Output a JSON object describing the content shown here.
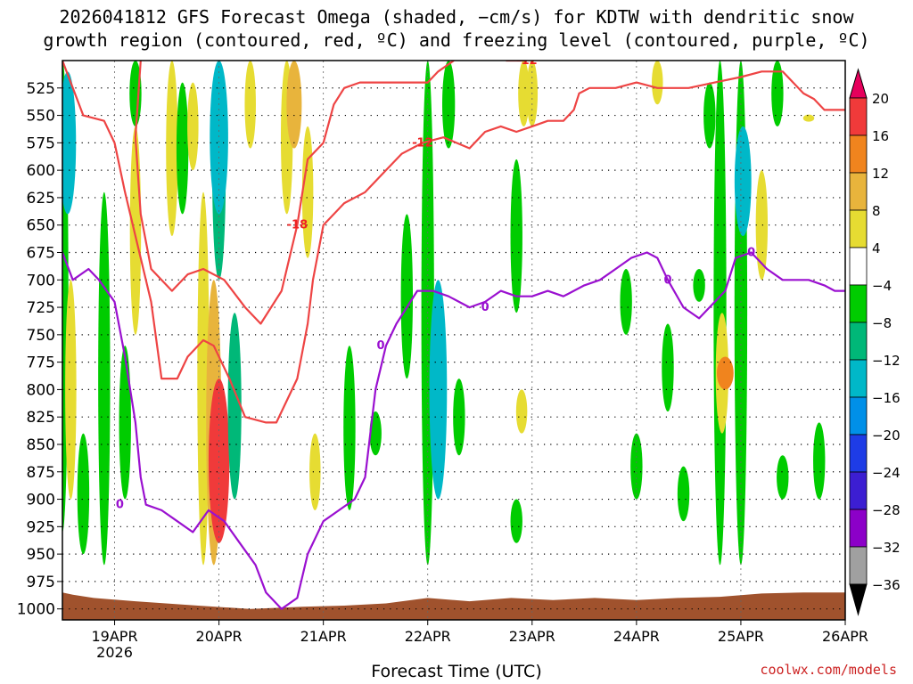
{
  "title_line1": "2026041812 GFS Forecast Omega (shaded, −cm/s) for KDTW with dendritic snow",
  "title_line2": "growth region (contoured, red, ºC) and freezing level (contoured, purple, ºC)",
  "credit": "coolwx.com/models",
  "chart_data": {
    "type": "heatmap",
    "xlabel": "Forecast Time (UTC)",
    "ylabel": "",
    "x_ticks": [
      {
        "day": 19,
        "label": "19APR",
        "sub": "2026"
      },
      {
        "day": 20,
        "label": "20APR",
        "sub": ""
      },
      {
        "day": 21,
        "label": "21APR",
        "sub": ""
      },
      {
        "day": 22,
        "label": "22APR",
        "sub": ""
      },
      {
        "day": 23,
        "label": "23APR",
        "sub": ""
      },
      {
        "day": 24,
        "label": "24APR",
        "sub": ""
      },
      {
        "day": 25,
        "label": "25APR",
        "sub": ""
      },
      {
        "day": 26,
        "label": "26APR",
        "sub": ""
      }
    ],
    "xlim": [
      18.5,
      26.0
    ],
    "y_ticks": [
      525,
      550,
      575,
      600,
      625,
      650,
      675,
      700,
      725,
      750,
      775,
      800,
      825,
      850,
      875,
      900,
      925,
      950,
      975,
      1000
    ],
    "ylim": [
      500,
      1010
    ],
    "colorbar": {
      "levels": [
        "20",
        "16",
        "12",
        "8",
        "4",
        "−4",
        "−8",
        "−12",
        "−16",
        "−20",
        "−24",
        "−28",
        "−32",
        "−36"
      ],
      "colors": [
        "#e6005c",
        "#f03a3a",
        "#f0841e",
        "#e8b43c",
        "#e6dc32",
        "#ffffff",
        "#00cc00",
        "#00b878",
        "#00b8c8",
        "#0090e8",
        "#1e3ce6",
        "#3c1ed2",
        "#8c00c8",
        "#a0a0a0",
        "#000000"
      ]
    },
    "omega_patches": [
      {
        "x": 18.5,
        "p0": 500,
        "p1": 930,
        "v": -6
      },
      {
        "x": 18.55,
        "p0": 510,
        "p1": 640,
        "v": -12
      },
      {
        "x": 18.58,
        "p0": 700,
        "p1": 900,
        "v": 5
      },
      {
        "x": 18.7,
        "p0": 840,
        "p1": 950,
        "v": -6
      },
      {
        "x": 18.9,
        "p0": 620,
        "p1": 960,
        "v": -6
      },
      {
        "x": 19.1,
        "p0": 760,
        "p1": 900,
        "v": -6
      },
      {
        "x": 19.2,
        "p0": 500,
        "p1": 560,
        "v": -6
      },
      {
        "x": 19.2,
        "p0": 560,
        "p1": 750,
        "v": 5
      },
      {
        "x": 19.55,
        "p0": 500,
        "p1": 660,
        "v": 6
      },
      {
        "x": 19.65,
        "p0": 520,
        "p1": 640,
        "v": -6
      },
      {
        "x": 19.75,
        "p0": 520,
        "p1": 600,
        "v": 5
      },
      {
        "x": 19.85,
        "p0": 620,
        "p1": 960,
        "v": 6
      },
      {
        "x": 19.95,
        "p0": 700,
        "p1": 960,
        "v": 10
      },
      {
        "x": 20.0,
        "p0": 790,
        "p1": 940,
        "v": 17
      },
      {
        "x": 20.0,
        "p0": 500,
        "p1": 700,
        "v": -8
      },
      {
        "x": 20.0,
        "p0": 500,
        "p1": 640,
        "v": -14
      },
      {
        "x": 20.15,
        "p0": 730,
        "p1": 900,
        "v": -8
      },
      {
        "x": 20.3,
        "p0": 500,
        "p1": 580,
        "v": 5
      },
      {
        "x": 20.65,
        "p0": 500,
        "p1": 640,
        "v": 6
      },
      {
        "x": 20.72,
        "p0": 500,
        "p1": 580,
        "v": 10
      },
      {
        "x": 20.85,
        "p0": 560,
        "p1": 680,
        "v": 5
      },
      {
        "x": 20.92,
        "p0": 840,
        "p1": 910,
        "v": 5
      },
      {
        "x": 21.25,
        "p0": 760,
        "p1": 910,
        "v": -6
      },
      {
        "x": 21.5,
        "p0": 820,
        "p1": 860,
        "v": -6
      },
      {
        "x": 21.8,
        "p0": 640,
        "p1": 790,
        "v": -6
      },
      {
        "x": 22.0,
        "p0": 500,
        "p1": 960,
        "v": -7
      },
      {
        "x": 22.1,
        "p0": 700,
        "p1": 900,
        "v": -13
      },
      {
        "x": 22.2,
        "p0": 500,
        "p1": 580,
        "v": -7
      },
      {
        "x": 22.3,
        "p0": 790,
        "p1": 860,
        "v": -6
      },
      {
        "x": 22.85,
        "p0": 590,
        "p1": 730,
        "v": -6
      },
      {
        "x": 22.92,
        "p0": 500,
        "p1": 560,
        "v": 5
      },
      {
        "x": 23.0,
        "p0": 500,
        "p1": 560,
        "v": 5
      },
      {
        "x": 22.85,
        "p0": 900,
        "p1": 940,
        "v": -6
      },
      {
        "x": 22.9,
        "p0": 800,
        "p1": 840,
        "v": 5
      },
      {
        "x": 23.9,
        "p0": 690,
        "p1": 750,
        "v": -6
      },
      {
        "x": 24.0,
        "p0": 840,
        "p1": 900,
        "v": -6
      },
      {
        "x": 24.2,
        "p0": 500,
        "p1": 540,
        "v": 5
      },
      {
        "x": 24.3,
        "p0": 740,
        "p1": 820,
        "v": -6
      },
      {
        "x": 24.45,
        "p0": 870,
        "p1": 920,
        "v": -6
      },
      {
        "x": 24.6,
        "p0": 690,
        "p1": 720,
        "v": -6
      },
      {
        "x": 24.7,
        "p0": 520,
        "p1": 580,
        "v": -6
      },
      {
        "x": 24.8,
        "p0": 500,
        "p1": 960,
        "v": -7
      },
      {
        "x": 24.82,
        "p0": 730,
        "p1": 840,
        "v": 7
      },
      {
        "x": 24.85,
        "p0": 770,
        "p1": 800,
        "v": 12
      },
      {
        "x": 25.0,
        "p0": 500,
        "p1": 960,
        "v": -7
      },
      {
        "x": 25.02,
        "p0": 560,
        "p1": 660,
        "v": -12
      },
      {
        "x": 25.2,
        "p0": 600,
        "p1": 700,
        "v": 6
      },
      {
        "x": 25.35,
        "p0": 500,
        "p1": 560,
        "v": -6
      },
      {
        "x": 25.4,
        "p0": 860,
        "p1": 900,
        "v": -6
      },
      {
        "x": 25.75,
        "p0": 830,
        "p1": 900,
        "v": -6
      },
      {
        "x": 25.65,
        "p0": 550,
        "p1": 555,
        "v": 5
      }
    ],
    "dgz_contours": [
      {
        "label": "-12",
        "points": [
          [
            18.5,
            500
          ],
          [
            18.6,
            525
          ],
          [
            18.7,
            550
          ],
          [
            18.9,
            555
          ],
          [
            19.0,
            575
          ],
          [
            19.1,
            620
          ],
          [
            19.2,
            660
          ],
          [
            19.35,
            720
          ],
          [
            19.45,
            790
          ],
          [
            19.6,
            790
          ],
          [
            19.7,
            770
          ],
          [
            19.85,
            755
          ],
          [
            19.95,
            760
          ],
          [
            20.1,
            790
          ],
          [
            20.25,
            825
          ],
          [
            20.45,
            830
          ],
          [
            20.55,
            830
          ],
          [
            20.75,
            790
          ],
          [
            20.85,
            740
          ],
          [
            20.9,
            700
          ],
          [
            21.0,
            650
          ],
          [
            21.2,
            630
          ],
          [
            21.4,
            620
          ],
          [
            21.6,
            600
          ],
          [
            21.75,
            585
          ],
          [
            21.95,
            575
          ],
          [
            22.15,
            570
          ],
          [
            22.4,
            580
          ],
          [
            22.55,
            565
          ],
          [
            22.7,
            560
          ],
          [
            22.85,
            565
          ],
          [
            23.0,
            560
          ],
          [
            23.15,
            555
          ],
          [
            23.3,
            555
          ],
          [
            23.4,
            545
          ],
          [
            23.45,
            530
          ],
          [
            23.55,
            525
          ],
          [
            23.8,
            525
          ],
          [
            24.0,
            520
          ],
          [
            24.2,
            525
          ],
          [
            24.5,
            525
          ],
          [
            24.75,
            520
          ],
          [
            25.0,
            515
          ],
          [
            25.2,
            510
          ],
          [
            25.4,
            510
          ],
          [
            25.5,
            520
          ],
          [
            25.6,
            530
          ],
          [
            25.7,
            535
          ],
          [
            25.8,
            545
          ],
          [
            26.0,
            545
          ]
        ]
      },
      {
        "label": "-18",
        "points": [
          [
            19.25,
            500
          ],
          [
            19.2,
            570
          ],
          [
            19.25,
            640
          ],
          [
            19.35,
            690
          ],
          [
            19.55,
            710
          ],
          [
            19.7,
            695
          ],
          [
            19.85,
            690
          ],
          [
            20.05,
            700
          ],
          [
            20.25,
            725
          ],
          [
            20.4,
            740
          ],
          [
            20.6,
            710
          ],
          [
            20.75,
            650
          ],
          [
            20.85,
            590
          ],
          [
            21.0,
            575
          ],
          [
            21.1,
            540
          ],
          [
            21.2,
            525
          ],
          [
            21.35,
            520
          ],
          [
            21.55,
            520
          ],
          [
            21.8,
            520
          ],
          [
            22.0,
            520
          ],
          [
            22.1,
            510
          ],
          [
            22.25,
            500
          ]
        ]
      },
      {
        "label": "-12",
        "points": [
          [
            22.75,
            500
          ],
          [
            22.95,
            500
          ]
        ]
      }
    ],
    "freezing_level": {
      "label": "0",
      "points": [
        [
          18.5,
          675
        ],
        [
          18.6,
          700
        ],
        [
          18.75,
          690
        ],
        [
          18.85,
          700
        ],
        [
          19.0,
          720
        ],
        [
          19.1,
          770
        ],
        [
          19.2,
          830
        ],
        [
          19.25,
          880
        ],
        [
          19.3,
          905
        ],
        [
          19.45,
          910
        ],
        [
          19.6,
          920
        ],
        [
          19.75,
          930
        ],
        [
          19.9,
          910
        ],
        [
          20.05,
          920
        ],
        [
          20.2,
          940
        ],
        [
          20.35,
          960
        ],
        [
          20.45,
          985
        ],
        [
          20.6,
          1000
        ],
        [
          20.75,
          990
        ],
        [
          20.85,
          950
        ],
        [
          21.0,
          920
        ],
        [
          21.15,
          910
        ],
        [
          21.3,
          900
        ],
        [
          21.4,
          880
        ],
        [
          21.5,
          800
        ],
        [
          21.6,
          760
        ],
        [
          21.7,
          740
        ],
        [
          21.8,
          725
        ],
        [
          21.9,
          710
        ],
        [
          22.05,
          710
        ],
        [
          22.2,
          715
        ],
        [
          22.4,
          725
        ],
        [
          22.55,
          720
        ],
        [
          22.7,
          710
        ],
        [
          22.85,
          715
        ],
        [
          23.0,
          715
        ],
        [
          23.15,
          710
        ],
        [
          23.3,
          715
        ],
        [
          23.5,
          705
        ],
        [
          23.65,
          700
        ],
        [
          23.8,
          690
        ],
        [
          23.95,
          680
        ],
        [
          24.1,
          675
        ],
        [
          24.2,
          680
        ],
        [
          24.3,
          700
        ],
        [
          24.45,
          725
        ],
        [
          24.6,
          735
        ],
        [
          24.75,
          720
        ],
        [
          24.85,
          710
        ],
        [
          24.95,
          680
        ],
        [
          25.1,
          675
        ],
        [
          25.25,
          690
        ],
        [
          25.4,
          700
        ],
        [
          25.5,
          700
        ],
        [
          25.65,
          700
        ],
        [
          25.8,
          705
        ],
        [
          25.9,
          710
        ],
        [
          26.0,
          710
        ]
      ]
    },
    "terrain_pressure": [
      [
        18.5,
        985
      ],
      [
        18.6,
        987
      ],
      [
        18.8,
        990
      ],
      [
        19.2,
        993
      ],
      [
        19.8,
        997
      ],
      [
        20.3,
        1000
      ],
      [
        20.8,
        998
      ],
      [
        21.2,
        997
      ],
      [
        21.6,
        995
      ],
      [
        22.0,
        990
      ],
      [
        22.4,
        993
      ],
      [
        22.8,
        990
      ],
      [
        23.2,
        992
      ],
      [
        23.6,
        990
      ],
      [
        24.0,
        992
      ],
      [
        24.4,
        990
      ],
      [
        24.8,
        989
      ],
      [
        25.2,
        986
      ],
      [
        25.6,
        985
      ],
      [
        26.0,
        985
      ]
    ]
  }
}
